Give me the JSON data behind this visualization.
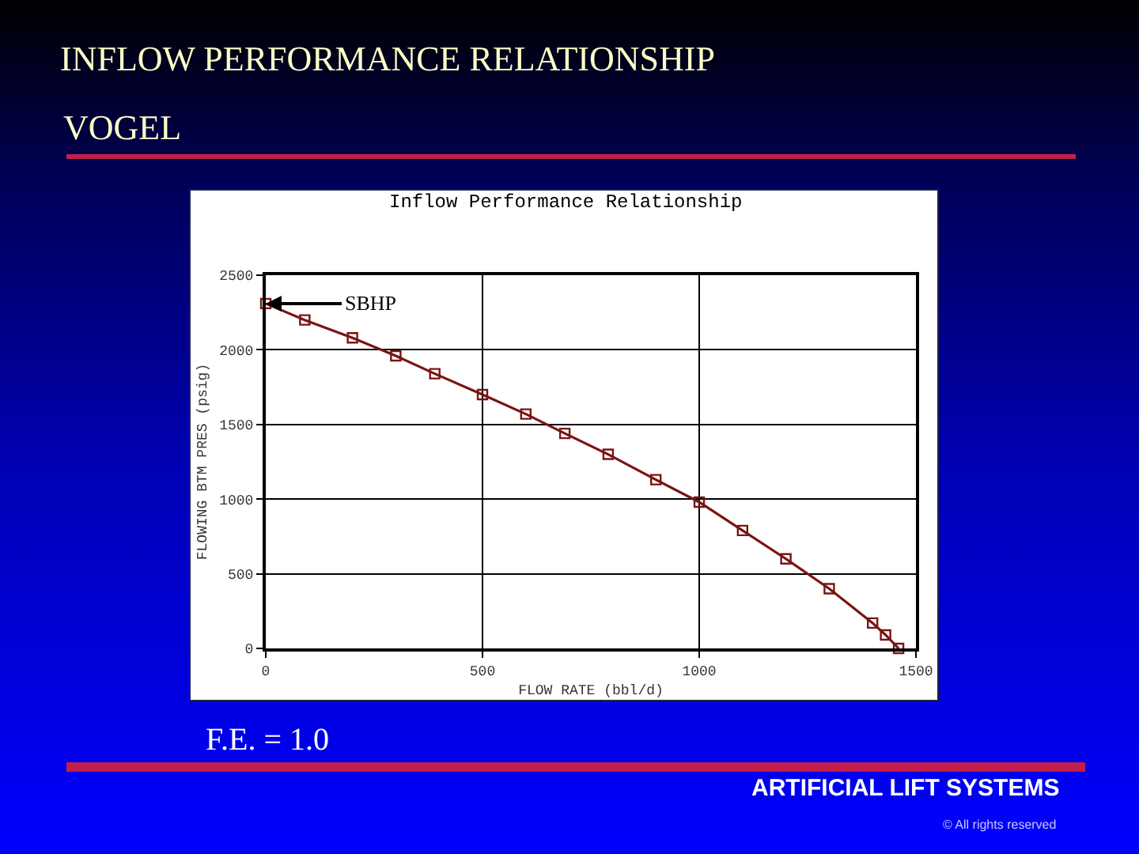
{
  "chart_data": {
    "type": "line",
    "title": "INFLOW PERFORMANCE RELATIONSHIP",
    "subtitle": "VOGEL",
    "xlabel": "FLOW RATE (bbl/d)",
    "ylabel": "FLOWING BTM PRES (psig)",
    "x": [
      0,
      90,
      200,
      300,
      390,
      500,
      600,
      690,
      790,
      900,
      1000,
      1100,
      1200,
      1300,
      1400,
      1430,
      1460
    ],
    "series": [
      {
        "color": "#7a1414",
        "values": [
          2310,
          2200,
          2080,
          1960,
          1840,
          1700,
          1570,
          1440,
          1300,
          1130,
          980,
          790,
          600,
          400,
          170,
          90,
          0
        ]
      }
    ],
    "xlim": [
      0,
      1500
    ],
    "xticks": [
      0,
      500,
      1000,
      1500
    ],
    "ylim": [
      0,
      2500
    ],
    "yticks": [
      0,
      500,
      1000,
      1500,
      2000,
      2500
    ],
    "grid": true,
    "marker": "square",
    "line_style": "solid",
    "annotations": [
      "Inflow Performance Relationship",
      {
        "text": "SBHP",
        "x": 0,
        "y": 2310
      },
      "F.E. = 1.0",
      "ARTIFICIAL LIFT SYSTEMS",
      "© All rights reserved"
    ]
  }
}
